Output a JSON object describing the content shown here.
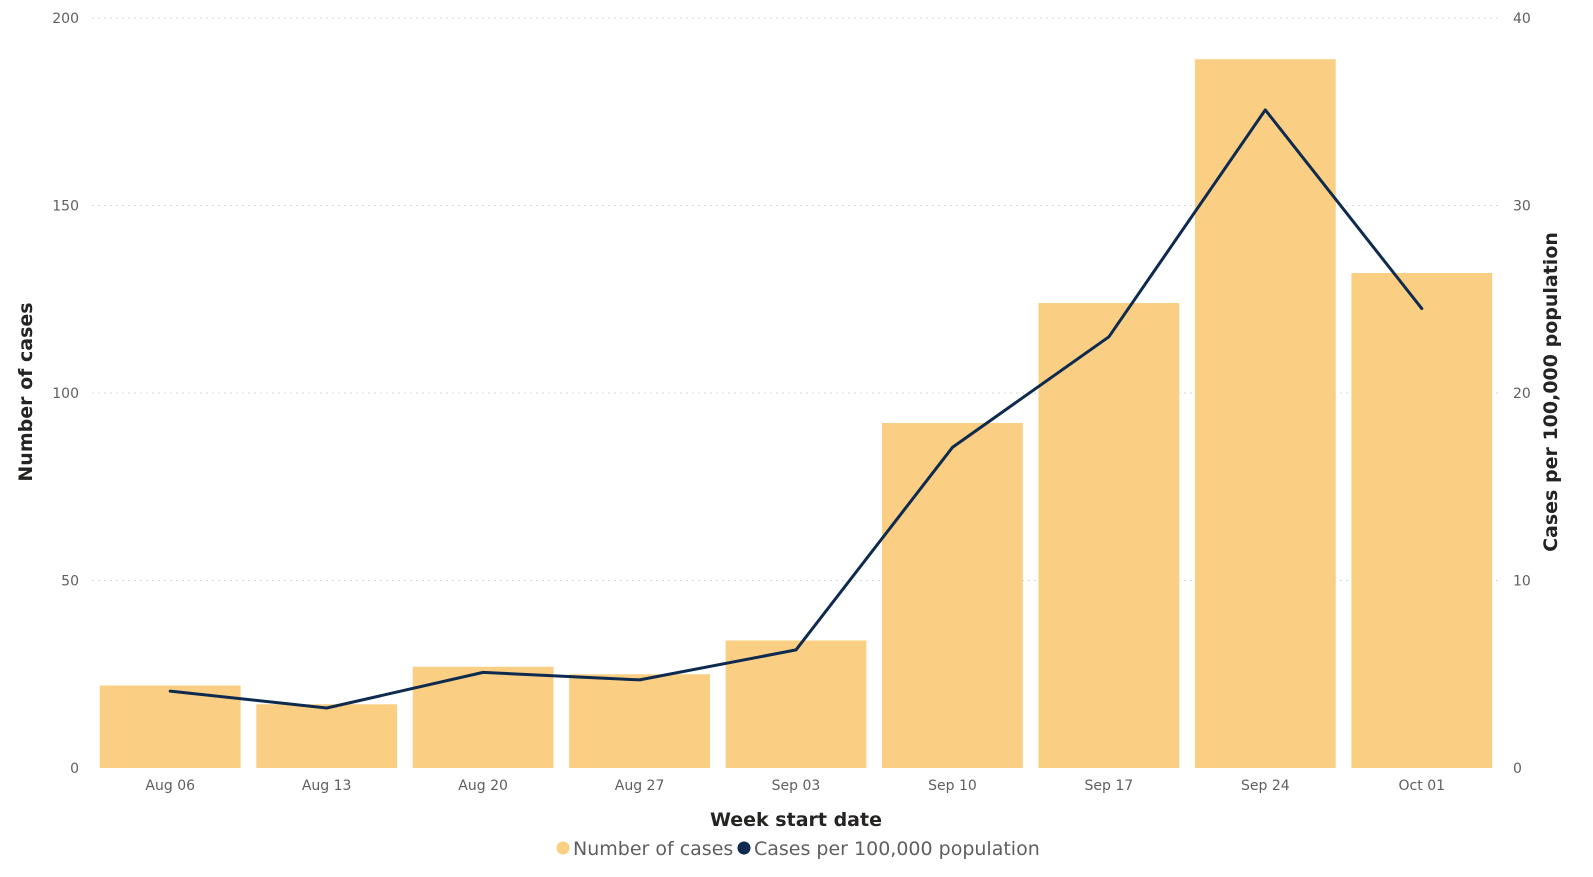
{
  "chart_data": {
    "type": "bar",
    "categories": [
      "Aug 06",
      "Aug 13",
      "Aug 20",
      "Aug 27",
      "Sep 03",
      "Sep 10",
      "Sep 17",
      "Sep 24",
      "Oct 01"
    ],
    "series": [
      {
        "name": "Number of cases",
        "type": "bar",
        "axis": "left",
        "color": "#fbcf83",
        "values": [
          22,
          17,
          27,
          25,
          34,
          92,
          124,
          189,
          132
        ]
      },
      {
        "name": "Cases per 100,000 population",
        "type": "line",
        "axis": "right",
        "color": "#0e2a4f",
        "values": [
          4.1,
          3.2,
          5.1,
          4.7,
          6.3,
          17.1,
          23.0,
          35.1,
          24.5
        ]
      }
    ],
    "xlabel": "Week start date",
    "ylabel": "Number of cases",
    "y2label": "Cases per 100,000 population",
    "ylim": [
      0,
      200
    ],
    "y2lim": [
      0,
      40
    ],
    "yticks": [
      "0",
      "50",
      "100",
      "150",
      "200"
    ],
    "y2ticks": [
      "0",
      "10",
      "20",
      "30",
      "40"
    ],
    "grid": true,
    "legend_position": "bottom-center"
  }
}
